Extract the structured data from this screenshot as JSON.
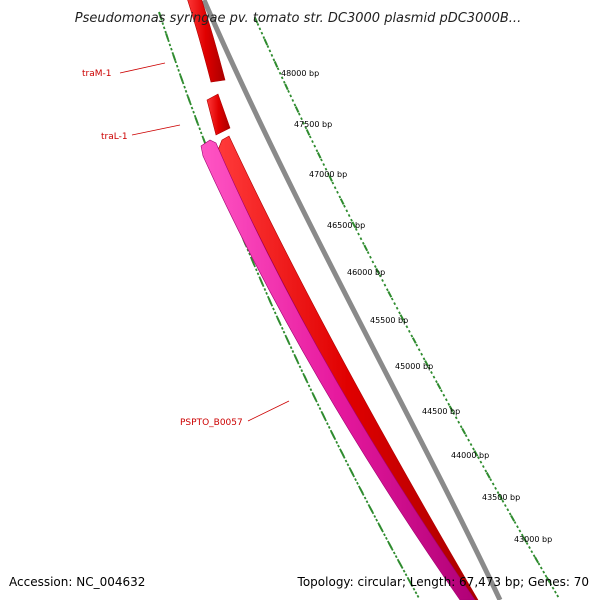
{
  "title": "Pseudomonas syringae pv. tomato str. DC3000 plasmid pDC3000B...",
  "footer": {
    "accession": "Accession: NC_004632",
    "summary": "Topology: circular; Length: 67,473 bp; Genes: 70"
  },
  "ticks": [
    {
      "label": "48000 bp"
    },
    {
      "label": "47500 bp"
    },
    {
      "label": "47000 bp"
    },
    {
      "label": "46500 bp"
    },
    {
      "label": "46000 bp"
    },
    {
      "label": "45500 bp"
    },
    {
      "label": "45000 bp"
    },
    {
      "label": "44500 bp"
    },
    {
      "label": "44000 bp"
    },
    {
      "label": "43500 bp"
    },
    {
      "label": "43000 bp"
    }
  ],
  "genes": [
    {
      "label": "traM-1",
      "color": "#e00000"
    },
    {
      "label": "traL-1",
      "color": "#e00000"
    },
    {
      "label": "PSPTO_B0057",
      "color": "#e6199e"
    }
  ],
  "colors": {
    "backbone": "#808080",
    "gene_red": "#e00000",
    "gene_magenta": "#e6199e",
    "tick_green": "#2e8b2e",
    "label_red": "#cc0000"
  }
}
